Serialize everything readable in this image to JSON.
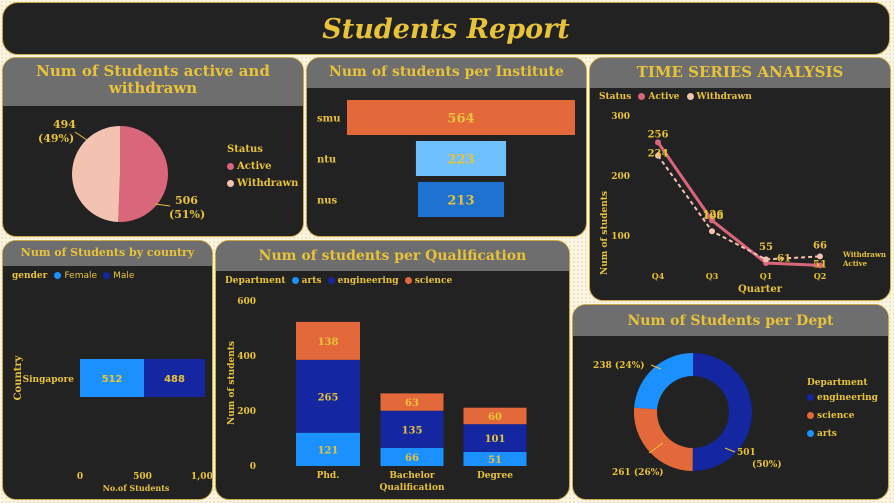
{
  "header": {
    "title": "Students Report"
  },
  "colors": {
    "gold": "#e8c33a",
    "panel": "#222222",
    "title_bar": "#6e6e6e",
    "active": "#d9667a",
    "withdrawn": "#f3c2b0",
    "orange": "#e3693a",
    "light_blue": "#6fc0ff",
    "mid_blue": "#1e73d1",
    "bright_blue": "#1a91ff",
    "navy": "#1426a0"
  },
  "status_panel": {
    "title": "Num of Students active and withdrawn",
    "legend_title": "Status",
    "chart_data": {
      "type": "pie",
      "labels": [
        "Active",
        "Withdrawn"
      ],
      "values": [
        506,
        494
      ],
      "percents": [
        "(51%)",
        "(49%)"
      ],
      "colors": [
        "#d9667a",
        "#f3c2b0"
      ]
    }
  },
  "institute_panel": {
    "title": "Num of students per Institute",
    "chart_data": {
      "type": "bar",
      "categories": [
        "smu",
        "ntu",
        "nus"
      ],
      "values": [
        564,
        223,
        213
      ],
      "colors": [
        "#e3693a",
        "#6fc0ff",
        "#1e73d1"
      ]
    }
  },
  "time_panel": {
    "title": "TIME SERIES ANALYSIS",
    "legend_title": "Status",
    "chart_data": {
      "type": "line",
      "categories": [
        "Q4",
        "Q3",
        "Q1",
        "Q2"
      ],
      "series": [
        {
          "name": "Active",
          "values": [
            256,
            126,
            55,
            51
          ],
          "color": "#d9667a"
        },
        {
          "name": "Withdrawn",
          "values": [
            234,
            108,
            61,
            66
          ],
          "color": "#f3c2b0"
        }
      ],
      "xlabel": "Quarter",
      "ylabel": "Num of students",
      "yticks": [
        "300",
        "200",
        "100"
      ],
      "ylim": [
        0,
        300
      ],
      "end_labels": [
        "Withdrawn",
        "Active"
      ]
    }
  },
  "country_panel": {
    "title": "Num of Students by country",
    "legend_title": "gender",
    "chart_data": {
      "type": "bar",
      "orientation": "horizontal-stacked",
      "categories": [
        "Singapore"
      ],
      "series": [
        {
          "name": "Female",
          "values": [
            512
          ],
          "color": "#1a91ff"
        },
        {
          "name": "Male",
          "values": [
            488
          ],
          "color": "#1426a0"
        }
      ],
      "xlabel": "No.of Students",
      "ylabel": "Country",
      "xticks": [
        "0",
        "500",
        "1,000"
      ],
      "xlim": [
        0,
        1000
      ]
    }
  },
  "qual_panel": {
    "title": "Num of students per Qualification",
    "legend_title": "Department",
    "chart_data": {
      "type": "bar",
      "orientation": "vertical-stacked",
      "categories": [
        "Phd.",
        "Bachelor",
        "Degree"
      ],
      "series": [
        {
          "name": "arts",
          "values": [
            121,
            66,
            51
          ],
          "color": "#1a91ff"
        },
        {
          "name": "engineering",
          "values": [
            265,
            135,
            101
          ],
          "color": "#1426a0"
        },
        {
          "name": "science",
          "values": [
            138,
            63,
            60
          ],
          "color": "#e3693a"
        }
      ],
      "xlabel": "Qualification",
      "ylabel": "Num of students",
      "yticks": [
        "600",
        "400",
        "200",
        "0"
      ],
      "ylim": [
        0,
        600
      ]
    }
  },
  "dept_panel": {
    "title": "Num of Students per Dept",
    "legend_title": "Department",
    "chart_data": {
      "type": "pie",
      "variant": "donut",
      "labels": [
        "engineering",
        "science",
        "arts"
      ],
      "values": [
        501,
        261,
        238
      ],
      "display": [
        "501 (50%)",
        "261 (26%)",
        "238 (24%)"
      ],
      "colors": [
        "#1426a0",
        "#e3693a",
        "#1a91ff"
      ]
    }
  }
}
